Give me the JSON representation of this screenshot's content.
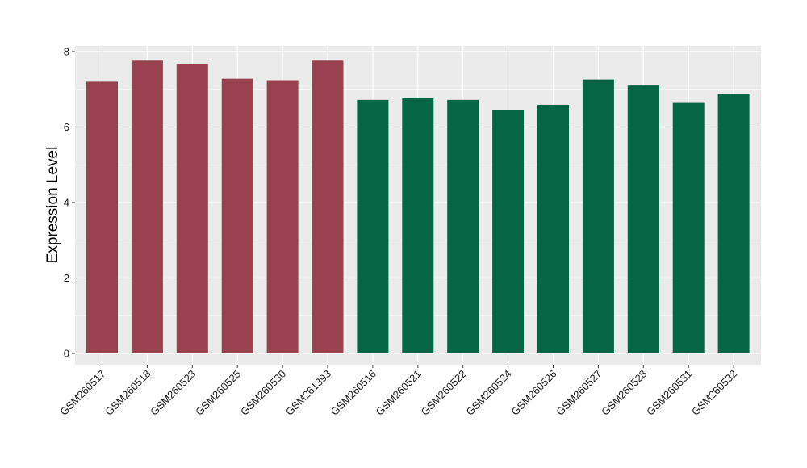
{
  "chart_data": {
    "type": "bar",
    "title": "",
    "xlabel": "",
    "ylabel": "Expression Level",
    "ylim": [
      -0.3,
      8.15
    ],
    "yticks": [
      0,
      2,
      4,
      6,
      8
    ],
    "grid": true,
    "legend": "none",
    "categories": [
      "GSM260517",
      "GSM260518",
      "GSM260523",
      "GSM260525",
      "GSM260530",
      "GSM261393",
      "GSM260516",
      "GSM260521",
      "GSM260522",
      "GSM260524",
      "GSM260526",
      "GSM260527",
      "GSM260528",
      "GSM260531",
      "GSM260532"
    ],
    "values": [
      7.2,
      7.78,
      7.68,
      7.28,
      7.24,
      7.78,
      6.72,
      6.76,
      6.72,
      6.46,
      6.59,
      7.26,
      7.12,
      6.64,
      6.87
    ],
    "group_index": [
      0,
      0,
      0,
      0,
      0,
      0,
      1,
      1,
      1,
      1,
      1,
      1,
      1,
      1,
      1
    ],
    "group_colors": [
      "#9a4150",
      "#046644"
    ],
    "panel_background": "#ebebeb",
    "grid_color": "#ffffff"
  }
}
